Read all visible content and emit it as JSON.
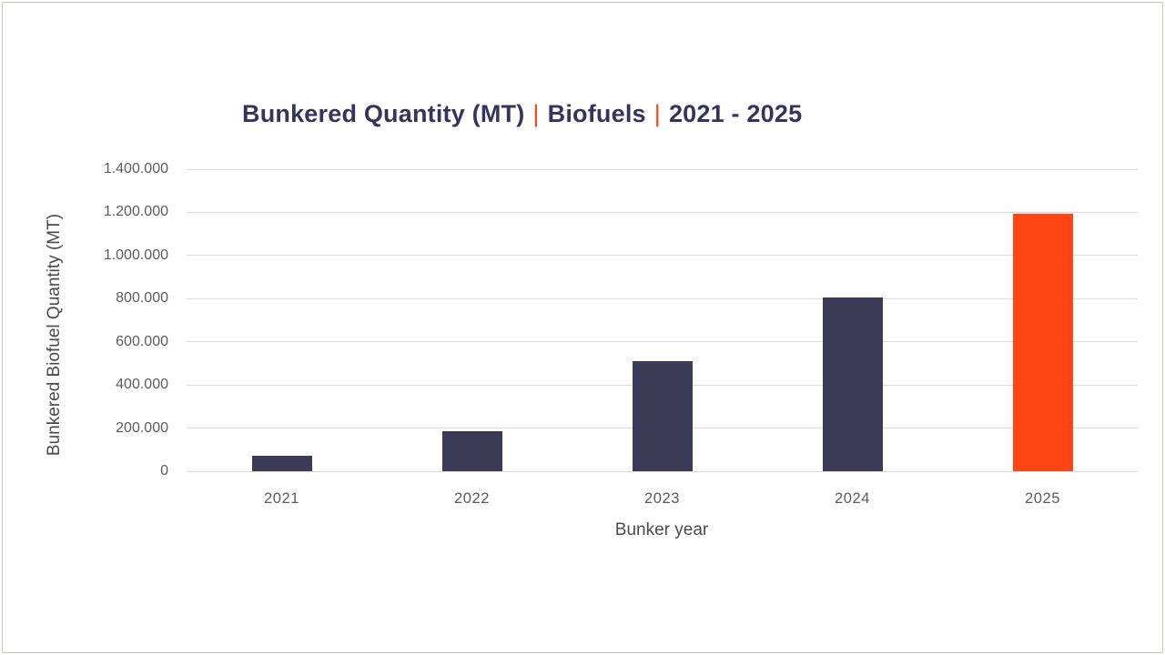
{
  "window": {
    "background": "#ffffff",
    "frame_border_color": "#c4c8bc"
  },
  "title": {
    "parts": [
      "Bunkered Quantity (MT)",
      "Biofuels",
      "2021 - 2025"
    ],
    "separator": "|",
    "text_color": "#34345e",
    "separator_color": "#ff4514"
  },
  "chart_data": {
    "type": "bar",
    "title": "Bunkered Quantity (MT) | Biofuels | 2021 - 2025",
    "xlabel": "Bunker year",
    "ylabel": "Bunkered Biofuel Quantity (MT)",
    "categories": [
      "2021",
      "2022",
      "2023",
      "2024",
      "2025"
    ],
    "values": [
      70000,
      185000,
      510000,
      805000,
      1195000
    ],
    "ylim": [
      0,
      1400000
    ],
    "ytick_step": 200000,
    "ytick_labels": [
      "0",
      "200.000",
      "400.000",
      "600.000",
      "800.000",
      "1.000.000",
      "1.200.000",
      "1.400.000"
    ],
    "grid": true,
    "legend": false,
    "gridline_color": "#d9d9d9",
    "bar_colors": [
      "#3a3a57",
      "#3a3a57",
      "#3a3a57",
      "#3a3a57",
      "#ff4514"
    ],
    "default_bar_color": "#3a3a57",
    "highlight_bar_color": "#ff4514",
    "tick_text_color": "#5a5a5a",
    "axis_title_color": "#4a4a4a"
  }
}
